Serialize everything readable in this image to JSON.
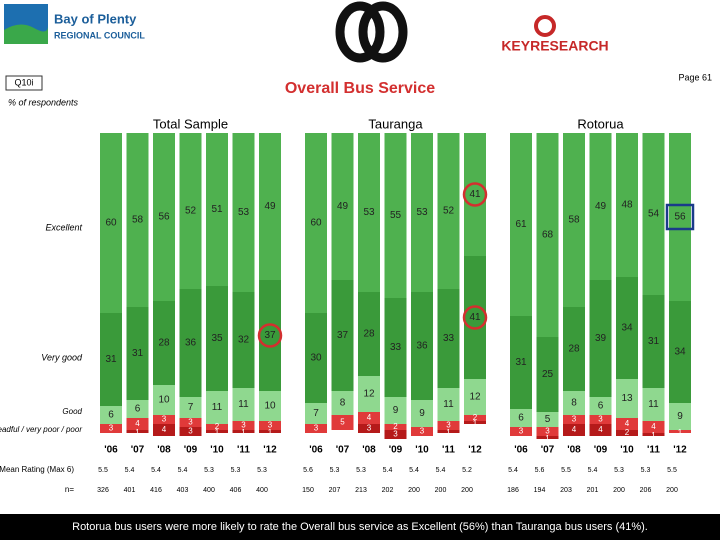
{
  "header": {
    "logo_left_1": "Bay of Plenty",
    "logo_left_2": "REGIONAL COUNCIL",
    "logo_right": "KEYRESEARCH",
    "question": "Q10i",
    "title": "Overall Bus Service",
    "page": "Page 61",
    "unit": "% of respondents",
    "mean_label": "Mean Rating (Max 6)",
    "n_label": "n=",
    "footer": "Rotorua bus users were more likely to rate the Overall bus service as Excellent (56%) than Tauranga bus users (41%)."
  },
  "chart_data": [
    {
      "type": "stacked_bar",
      "title": "Total Sample",
      "categories": [
        "'06",
        "'07",
        "'08",
        "'09",
        "'10",
        "'11",
        "'12"
      ],
      "series": [
        {
          "name": "Excellent",
          "color": "#4fb14f",
          "values": [
            60,
            58,
            56,
            52,
            51,
            53,
            49
          ]
        },
        {
          "name": "Very good",
          "color": "#3a9a3a",
          "values": [
            31,
            31,
            28,
            36,
            35,
            32,
            37
          ]
        },
        {
          "name": "Good",
          "color": "#8fd88f",
          "values": [
            6,
            6,
            10,
            7,
            11,
            11,
            10
          ]
        },
        {
          "name": "Dreadful / very poor / poor",
          "color": "#e03a3a",
          "values": [
            3,
            4,
            3,
            3,
            2,
            3,
            3
          ]
        },
        {
          "color": "#b51a1a",
          "values": [
            null,
            1,
            4,
            3,
            1,
            1,
            1
          ]
        }
      ],
      "mean": [
        5.5,
        5.4,
        5.4,
        5.4,
        5.3,
        5.3,
        5.3
      ],
      "n": [
        326,
        401,
        416,
        403,
        400,
        406,
        400
      ]
    },
    {
      "type": "stacked_bar",
      "title": "Tauranga",
      "categories": [
        "'06",
        "'07",
        "'08",
        "'09",
        "'10",
        "'11",
        "'12"
      ],
      "series": [
        {
          "color": "#4fb14f",
          "values": [
            60,
            49,
            53,
            55,
            53,
            52,
            41
          ]
        },
        {
          "color": "#3a9a3a",
          "values": [
            30,
            37,
            28,
            33,
            36,
            33,
            41
          ]
        },
        {
          "color": "#8fd88f",
          "values": [
            7,
            8,
            12,
            9,
            9,
            11,
            12
          ]
        },
        {
          "color": "#e03a3a",
          "values": [
            3,
            5,
            4,
            2,
            3,
            3,
            2
          ]
        },
        {
          "color": "#b51a1a",
          "values": [
            null,
            null,
            3,
            3,
            null,
            1,
            1
          ]
        }
      ],
      "mean": [
        5.6,
        5.3,
        5.3,
        5.4,
        5.4,
        5.4,
        5.2
      ],
      "n": [
        150,
        207,
        213,
        202,
        200,
        200,
        200
      ]
    },
    {
      "type": "stacked_bar",
      "title": "Rotorua",
      "categories": [
        "'06",
        "'07",
        "'08",
        "'09",
        "'10",
        "'11",
        "'12"
      ],
      "series": [
        {
          "color": "#4fb14f",
          "values": [
            61,
            68,
            58,
            49,
            48,
            54,
            56
          ]
        },
        {
          "color": "#3a9a3a",
          "values": [
            31,
            25,
            28,
            39,
            34,
            31,
            34
          ]
        },
        {
          "color": "#8fd88f",
          "values": [
            6,
            5,
            8,
            6,
            13,
            11,
            9
          ]
        },
        {
          "color": "#e03a3a",
          "values": [
            3,
            3,
            3,
            3,
            4,
            4,
            1
          ]
        },
        {
          "color": "#b51a1a",
          "values": [
            null,
            1,
            4,
            4,
            2,
            1,
            null
          ]
        }
      ],
      "mean": [
        5.4,
        5.6,
        5.5,
        5.4,
        5.3,
        5.3,
        5.5
      ],
      "n": [
        186,
        194,
        203,
        201,
        200,
        206,
        200
      ]
    }
  ]
}
